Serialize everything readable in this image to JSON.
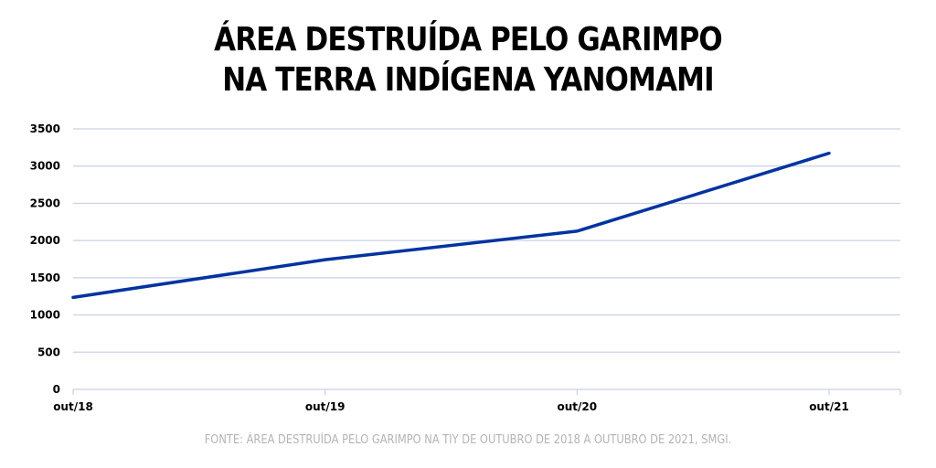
{
  "chart_data": {
    "type": "line",
    "title_lines": [
      "ÁREA DESTRUÍDA PELO GARIMPO",
      "NA TERRA INDÍGENA YANOMAMI"
    ],
    "categories": [
      "out/18",
      "out/19",
      "out/20",
      "out/21"
    ],
    "series": [
      {
        "values": [
          1236,
          1742,
          2126,
          3173
        ]
      }
    ],
    "ylim": [
      0,
      3500
    ],
    "yticks": [
      0,
      500,
      1000,
      1500,
      2000,
      2500,
      3000,
      3500
    ],
    "grid": true,
    "line_color": "#0033a0",
    "grid_color": "#c9cfe6"
  },
  "source": "FONTE: ÁREA DESTRUÍDA PELO GARIMPO NA TIY DE OUTUBRO DE 2018 A OUTUBRO DE 2021, SMGI."
}
